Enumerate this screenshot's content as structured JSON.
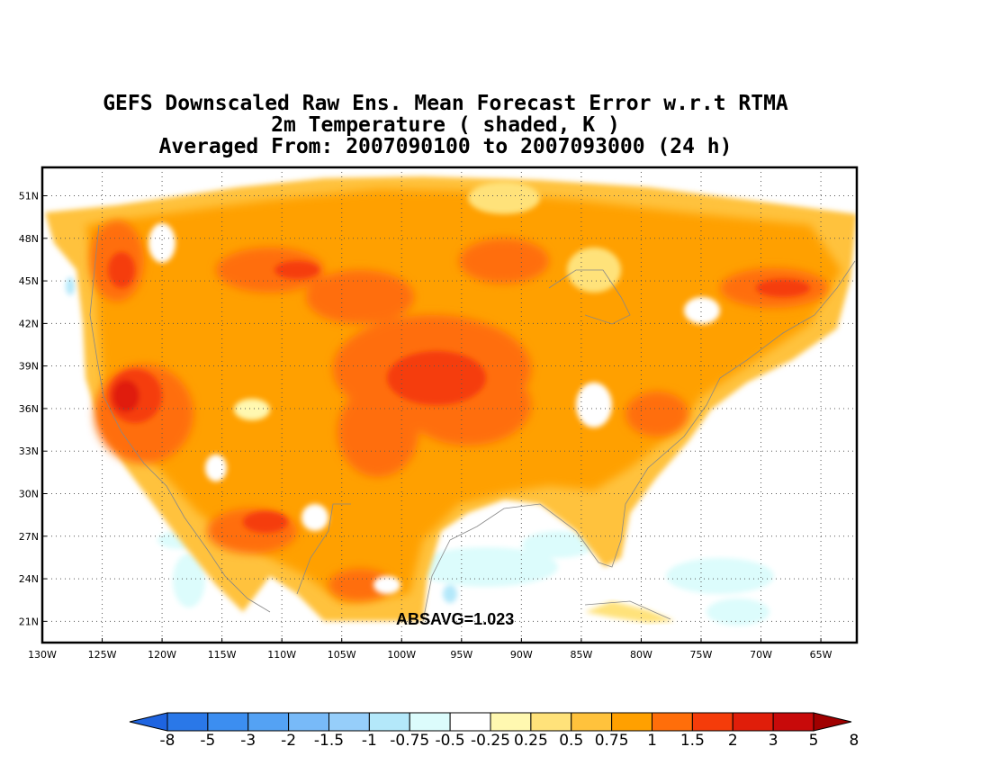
{
  "title": {
    "line1": "GEFS Downscaled Raw Ens. Mean Forecast Error w.r.t RTMA",
    "line2": "2m Temperature ( shaded, K )",
    "line3": "Averaged From: 2007090100 to 2007093000 (24 h)"
  },
  "map": {
    "lon_range": [
      -130,
      -62
    ],
    "lat_range": [
      19.5,
      53
    ],
    "lon_ticks": [
      "130W",
      "125W",
      "120W",
      "115W",
      "110W",
      "105W",
      "100W",
      "95W",
      "90W",
      "85W",
      "80W",
      "75W",
      "70W",
      "65W"
    ],
    "lat_ticks": [
      "51N",
      "48N",
      "45N",
      "42N",
      "39N",
      "36N",
      "33N",
      "30N",
      "27N",
      "24N",
      "21N"
    ],
    "grid": true,
    "grid_style": "dotted"
  },
  "annotation": {
    "absavg": "ABSAVG=1.023"
  },
  "colorbar": {
    "levels": [
      "-8",
      "-5",
      "-3",
      "-2",
      "-1.5",
      "-1",
      "-0.75",
      "-0.5",
      "-0.25",
      "0.25",
      "0.5",
      "0.75",
      "1",
      "1.5",
      "2",
      "3",
      "5",
      "8"
    ],
    "colors": [
      "#1e64e0",
      "#2a78e8",
      "#3c8ef0",
      "#54a2f4",
      "#78baf8",
      "#96cefa",
      "#b4e8fa",
      "#dcfcfc",
      "#ffffff",
      "#fff8b0",
      "#ffe27a",
      "#ffc23c",
      "#ffa000",
      "#ff6e0a",
      "#f53c0a",
      "#e01e0a",
      "#c80a0a",
      "#a00000"
    ]
  },
  "colors": {
    "land_base": "#ffa000",
    "warm_core": "#ff6e0a",
    "hot": "#e01e0a",
    "ocean_light": "#dcfcfc"
  }
}
